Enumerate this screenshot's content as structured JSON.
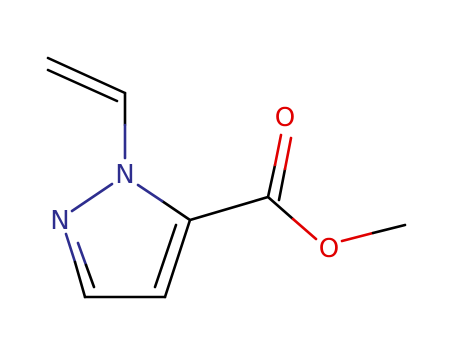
{
  "atoms": [
    {
      "label": "N"
    },
    {
      "label": "N"
    },
    {
      "label": "O"
    },
    {
      "label": "O"
    }
  ]
}
